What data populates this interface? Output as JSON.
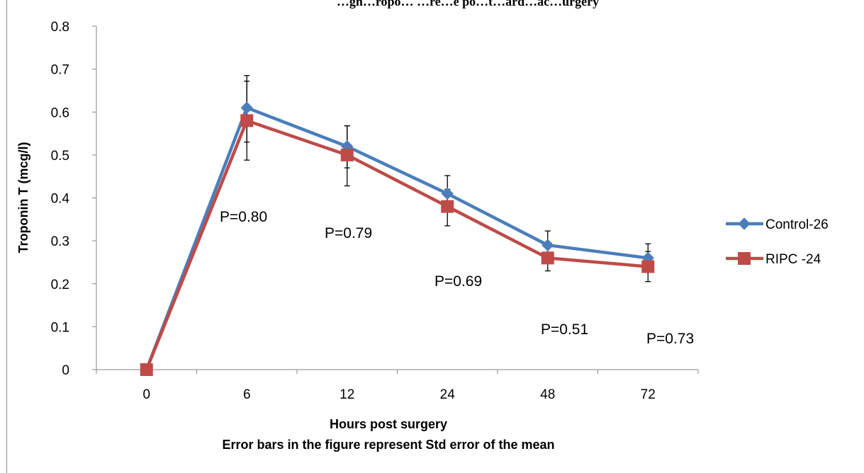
{
  "chart_data": {
    "type": "line",
    "title_partial": "…gn…ropo… …re…e po…t…ard…ac…urgery",
    "xlabel": "Hours post surgery",
    "footnote": "Error bars in the figure represent Std error of the mean",
    "ylabel": "Troponin T (mcg/l)",
    "categories": [
      "0",
      "6",
      "12",
      "24",
      "48",
      "72"
    ],
    "ylim": [
      0,
      0.8
    ],
    "yticks": [
      "0",
      "0.1",
      "0.2",
      "0.3",
      "0.4",
      "0.5",
      "0.6",
      "0.7",
      "0.8"
    ],
    "legend_position": "right",
    "grid": false,
    "series": [
      {
        "name": "Control-26",
        "color": "#4a7ebb",
        "marker": "diamond",
        "values": [
          0,
          0.61,
          0.52,
          0.41,
          0.29,
          0.26
        ],
        "err_hi": [
          null,
          0.685,
          0.568,
          0.452,
          0.323,
          0.293
        ],
        "err_lo": [
          null,
          0.53,
          0.47,
          0.37,
          0.257,
          0.227
        ]
      },
      {
        "name": "RIPC -24",
        "color": "#be4b48",
        "marker": "square",
        "values": [
          0,
          0.58,
          0.5,
          0.38,
          0.26,
          0.24
        ],
        "err_hi": [
          null,
          0.672,
          0.568,
          0.42,
          0.29,
          0.275
        ],
        "err_lo": [
          null,
          0.488,
          0.428,
          0.335,
          0.23,
          0.205
        ]
      }
    ],
    "annotations": [
      "P=0.80",
      "P=0.79",
      "P=0.69",
      "P=0.51",
      "P=0.73"
    ]
  }
}
